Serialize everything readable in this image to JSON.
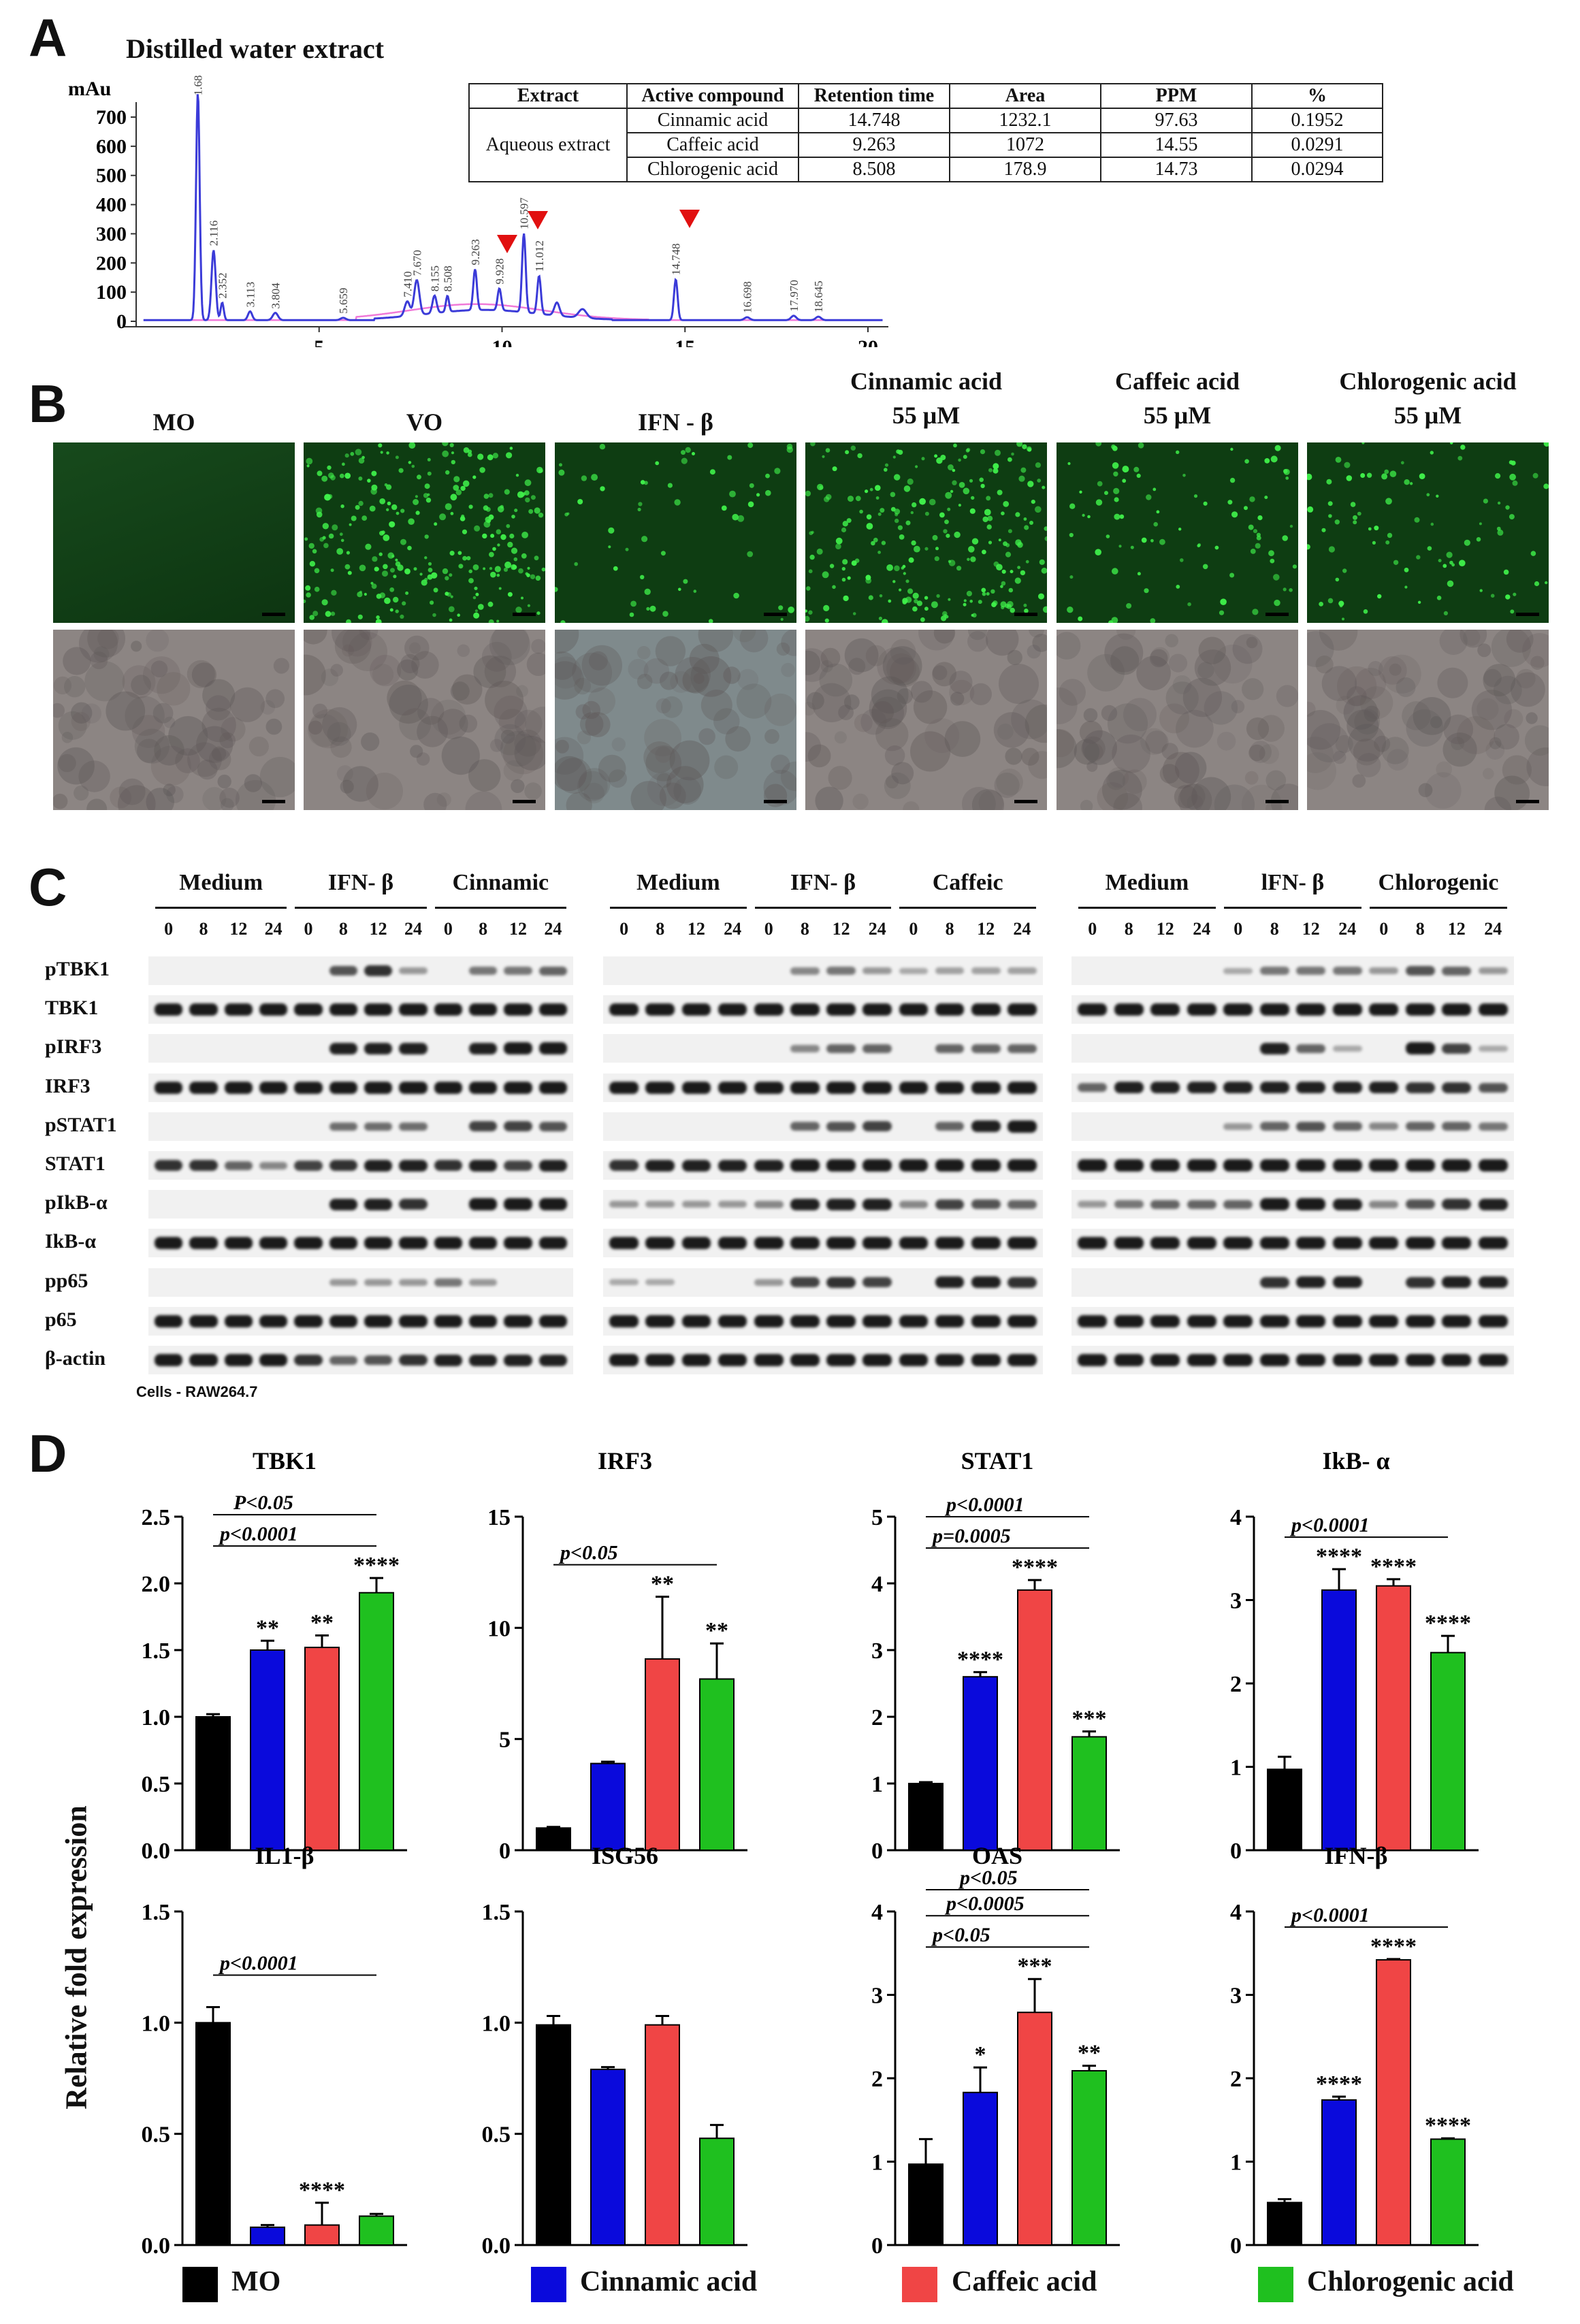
{
  "panels": {
    "a": "A",
    "b": "B",
    "c": "C",
    "d": "D"
  },
  "chromatogram": {
    "title": "Distilled water extract",
    "y_unit": "mAu",
    "y_ticks": [
      "700",
      "600",
      "500",
      "400",
      "300",
      "200",
      "100",
      "0"
    ],
    "x_ticks": [
      "5",
      "10",
      "15",
      "20"
    ],
    "peak_labels": [
      "1.686",
      "2.116",
      "2.352",
      "3.113",
      "3.804",
      "5.659",
      "7.410",
      "7.670",
      "8.155",
      "8.508",
      "9.263",
      "9.928",
      "10.597",
      "11.012",
      "14.748",
      "16.698",
      "17.970",
      "18.645"
    ]
  },
  "hplc_table": {
    "headers": [
      "Extract",
      "Active compound",
      "Retention time",
      "Area",
      "PPM",
      "%"
    ],
    "extract": "Aqueous extract",
    "rows": [
      [
        "Cinnamic acid",
        "14.748",
        "1232.1",
        "97.63",
        "0.1952"
      ],
      [
        "Caffeic acid",
        "9.263",
        "1072",
        "14.55",
        "0.0291"
      ],
      [
        "Chlorogenic acid",
        "8.508",
        "178.9",
        "14.73",
        "0.0294"
      ]
    ]
  },
  "micrographs": {
    "conditions": [
      {
        "name": "MO",
        "dose": ""
      },
      {
        "name": "VO",
        "dose": ""
      },
      {
        "name": "IFN - β",
        "dose": ""
      },
      {
        "name": "Cinnamic acid",
        "dose": "55 μM"
      },
      {
        "name": "Caffeic acid",
        "dose": "55 μM"
      },
      {
        "name": "Chlorogenic acid",
        "dose": "55 μM"
      }
    ]
  },
  "western": {
    "proteins": [
      "pTBK1",
      "TBK1",
      "pIRF3",
      "IRF3",
      "pSTAT1",
      "STAT1",
      "pIkB-α",
      "IkB-α",
      "pp65",
      "p65",
      "β-actin"
    ],
    "timepoints": [
      "0",
      "8",
      "12",
      "24"
    ],
    "blocks": [
      {
        "groups": [
          "Medium",
          "IFN- β",
          "Cinnamic"
        ]
      },
      {
        "groups": [
          "Medium",
          "IFN- β",
          "Caffeic"
        ]
      },
      {
        "groups": [
          "Medium",
          "lFN- β",
          "Chlorogenic"
        ]
      }
    ],
    "cells_note": "Cells - RAW264.7"
  },
  "chart_data": [
    {
      "type": "bar",
      "title": "TBK1",
      "categories": [
        "MO",
        "Cinnamic acid",
        "Caffeic acid",
        "Chlorogenic acid"
      ],
      "values": [
        1.0,
        1.5,
        1.52,
        1.93
      ],
      "errors": [
        0.02,
        0.07,
        0.09,
        0.11
      ],
      "stars": [
        "",
        "**",
        "**",
        "****"
      ],
      "ylim": [
        0,
        2.5
      ],
      "yticks": [
        "0.0",
        "0.5",
        "1.0",
        "1.5",
        "2.0",
        "2.5"
      ],
      "annotations": [
        "p<0.0001",
        "P<0.05"
      ]
    },
    {
      "type": "bar",
      "title": "IRF3",
      "categories": [
        "MO",
        "Cinnamic acid",
        "Caffeic acid",
        "Chlorogenic acid"
      ],
      "values": [
        1.0,
        3.9,
        8.6,
        7.7
      ],
      "errors": [
        0.05,
        0.08,
        2.8,
        1.6
      ],
      "stars": [
        "",
        "",
        "**",
        "**"
      ],
      "ylim": [
        0,
        15
      ],
      "yticks": [
        "0",
        "5",
        "10",
        "15"
      ],
      "annotations": [
        "p<0.05"
      ]
    },
    {
      "type": "bar",
      "title": "STAT1",
      "categories": [
        "MO",
        "Cinnamic acid",
        "Caffeic acid",
        "Chlorogenic acid"
      ],
      "values": [
        1.0,
        2.6,
        3.9,
        1.7
      ],
      "errors": [
        0.02,
        0.07,
        0.15,
        0.08
      ],
      "stars": [
        "",
        "****",
        "****",
        "***"
      ],
      "ylim": [
        0,
        5
      ],
      "yticks": [
        "0",
        "1",
        "2",
        "3",
        "4",
        "5"
      ],
      "annotations": [
        "p=0.0005",
        "p<0.0001"
      ]
    },
    {
      "type": "bar",
      "title": "IkB- α",
      "categories": [
        "MO",
        "Cinnamic acid",
        "Caffeic acid",
        "Chlorogenic acid"
      ],
      "values": [
        0.97,
        3.12,
        3.17,
        2.37
      ],
      "errors": [
        0.15,
        0.25,
        0.08,
        0.2
      ],
      "stars": [
        "",
        "****",
        "****",
        "****"
      ],
      "ylim": [
        0,
        4
      ],
      "yticks": [
        "0",
        "1",
        "2",
        "3",
        "4"
      ],
      "annotations": [
        "p<0.0001"
      ]
    },
    {
      "type": "bar",
      "title": "IL1-β",
      "categories": [
        "MO",
        "Cinnamic acid",
        "Caffeic acid",
        "Chlorogenic acid"
      ],
      "values": [
        1.0,
        0.08,
        0.09,
        0.13
      ],
      "errors": [
        0.07,
        0.01,
        0.1,
        0.01
      ],
      "stars": [
        "",
        "",
        "****",
        ""
      ],
      "ylim": [
        0,
        1.5
      ],
      "yticks": [
        "0.0",
        "0.5",
        "1.0",
        "1.5"
      ],
      "annotations": [
        "p<0.0001"
      ]
    },
    {
      "type": "bar",
      "title": "ISG56",
      "categories": [
        "MO",
        "Cinnamic acid",
        "Caffeic acid",
        "Chlorogenic acid"
      ],
      "values": [
        0.99,
        0.79,
        0.99,
        0.48
      ],
      "errors": [
        0.04,
        0.01,
        0.04,
        0.06
      ],
      "stars": [
        "",
        "",
        "",
        ""
      ],
      "ylim": [
        0,
        1.5
      ],
      "yticks": [
        "0.0",
        "0.5",
        "1.0",
        "1.5"
      ],
      "annotations": []
    },
    {
      "type": "bar",
      "title": "OAS",
      "categories": [
        "MO",
        "Cinnamic acid",
        "Caffeic acid",
        "Chlorogenic acid"
      ],
      "values": [
        0.97,
        1.83,
        2.79,
        2.09
      ],
      "errors": [
        0.3,
        0.3,
        0.4,
        0.06
      ],
      "stars": [
        "",
        "*",
        "***",
        "**"
      ],
      "ylim": [
        0,
        4
      ],
      "yticks": [
        "0",
        "1",
        "2",
        "3",
        "4"
      ],
      "annotations": [
        "p<0.05",
        "p<0.0005",
        "p<0.05"
      ]
    },
    {
      "type": "bar",
      "title": "IFN-β",
      "categories": [
        "MO",
        "Cinnamic acid",
        "Caffeic acid",
        "Chlorogenic acid"
      ],
      "values": [
        0.51,
        1.74,
        3.42,
        1.27
      ],
      "errors": [
        0.04,
        0.04,
        0.01,
        0.01
      ],
      "stars": [
        "",
        "****",
        "****",
        "****"
      ],
      "ylim": [
        0,
        4
      ],
      "yticks": [
        "0",
        "1",
        "2",
        "3",
        "4"
      ],
      "annotations": [
        "p<0.0001"
      ]
    }
  ],
  "y_axis_title": "Relative fold expression",
  "legend": [
    {
      "label": "MO",
      "color": "#000000"
    },
    {
      "label": "Cinnamic acid",
      "color": "#0a0adc"
    },
    {
      "label": "Caffeic acid",
      "color": "#f04545"
    },
    {
      "label": "Chlorogenic acid",
      "color": "#1fc01f"
    }
  ]
}
